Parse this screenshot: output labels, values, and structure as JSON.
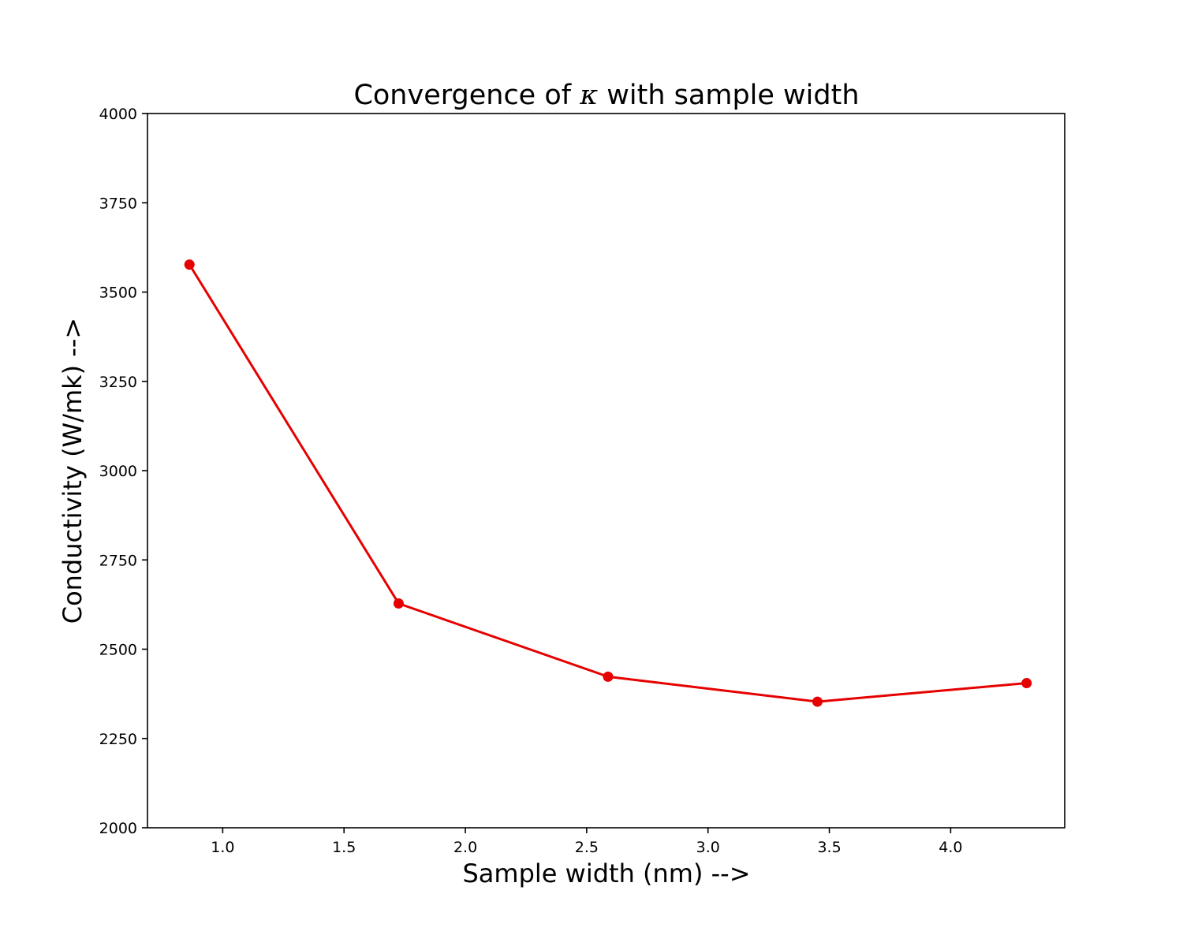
{
  "chart_data": {
    "type": "line",
    "title_prefix": "Convergence of ",
    "title_symbol": "κ",
    "title_suffix": " with sample width",
    "xlabel": "Sample width (nm) -->",
    "ylabel": "Conductivity (W/mk) -->",
    "xlim": [
      0.69,
      4.47
    ],
    "ylim": [
      2000,
      4000
    ],
    "xticks": [
      1.0,
      1.5,
      2.0,
      2.5,
      3.0,
      3.5,
      4.0
    ],
    "xtick_labels": [
      "1.0",
      "1.5",
      "2.0",
      "2.5",
      "3.0",
      "3.5",
      "4.0"
    ],
    "yticks": [
      2000,
      2250,
      2500,
      2750,
      3000,
      3250,
      3500,
      3750,
      4000
    ],
    "ytick_labels": [
      "2000",
      "2250",
      "2500",
      "2750",
      "3000",
      "3250",
      "3500",
      "3750",
      "4000"
    ],
    "grid": false,
    "series": [
      {
        "color": "#e60000",
        "marker": "circle",
        "x": [
          0.863,
          1.725,
          2.588,
          3.451,
          4.313
        ],
        "y": [
          3577,
          2628,
          2423,
          2353,
          2405
        ]
      }
    ]
  }
}
